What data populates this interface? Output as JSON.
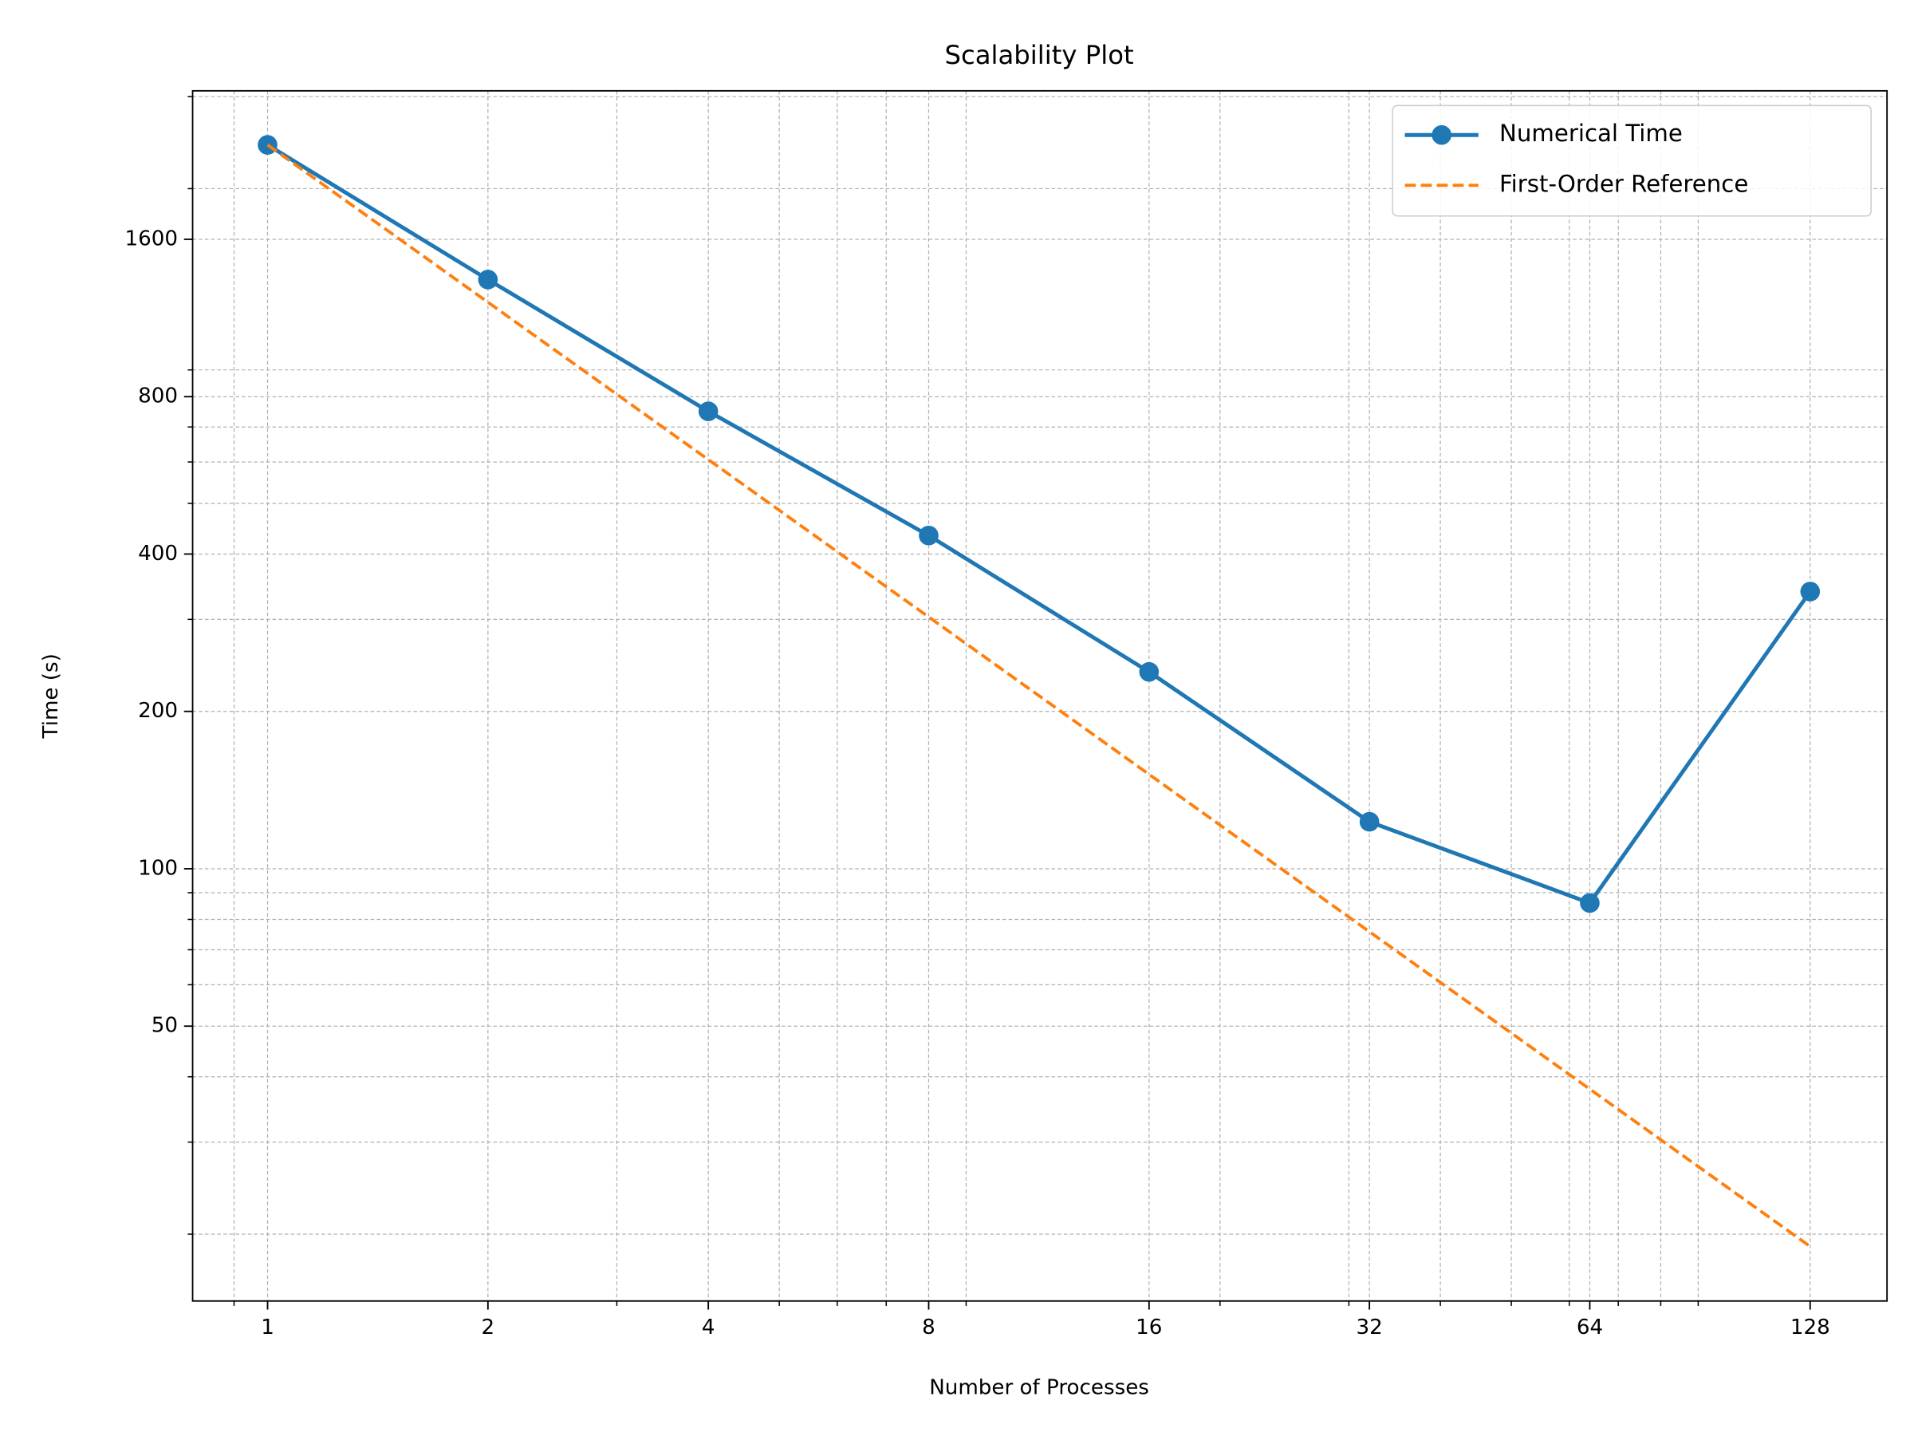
{
  "chart_data": {
    "type": "line",
    "title": "Scalability Plot",
    "x_label": "Number of Processes",
    "y_label": "Time (s)",
    "x": [
      1,
      2,
      4,
      8,
      16,
      32,
      64,
      128
    ],
    "series": [
      {
        "name": "Numerical Time",
        "color": "#1f77b4",
        "style": "solid",
        "marker": true,
        "values": [
          2425,
          1340,
          750,
          434,
          238,
          123,
          86,
          339
        ]
      },
      {
        "name": "First-Order Reference",
        "color": "#ff7f0e",
        "style": "dashed",
        "marker": false,
        "values": [
          2425,
          1212.5,
          606.25,
          303.125,
          151.5625,
          75.78125,
          37.890625,
          18.9453125
        ]
      }
    ],
    "xscale": "log",
    "yscale": "log",
    "xlim": [
      0.79,
      163
    ],
    "ylim": [
      14.9,
      3077
    ],
    "xticks": [
      1,
      2,
      4,
      8,
      16,
      32,
      64,
      128
    ],
    "yticks": [
      50,
      100,
      200,
      400,
      800,
      1600
    ],
    "xminor_ticks": [
      0.9,
      3,
      5,
      6,
      7,
      9,
      20,
      30,
      40,
      50,
      60,
      70,
      80,
      90
    ],
    "yminor_ticks": [
      20,
      30,
      40,
      60,
      70,
      80,
      90,
      300,
      500,
      600,
      700,
      900,
      2000,
      3000
    ],
    "grid": true,
    "legend": "upper right"
  }
}
